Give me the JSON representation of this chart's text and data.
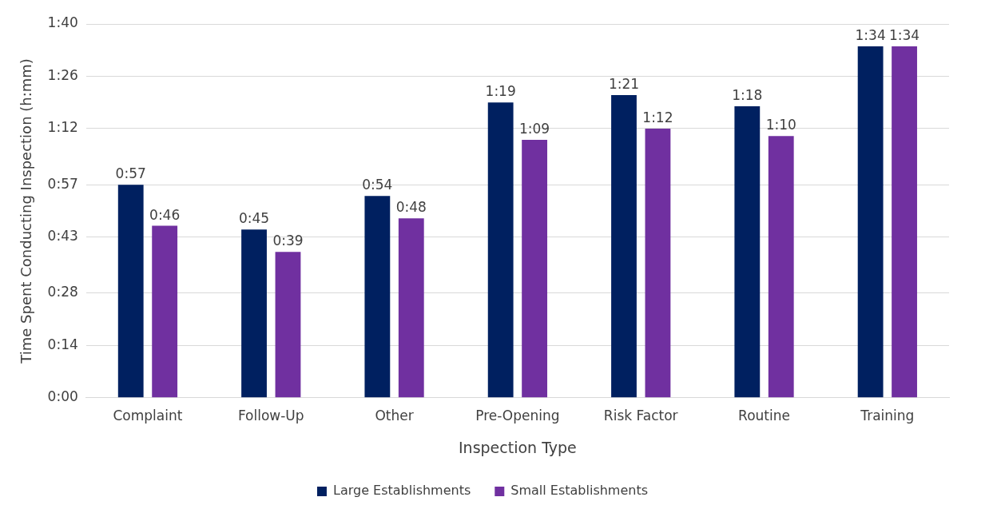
{
  "chart_data": {
    "type": "bar",
    "xlabel": "Inspection Type",
    "ylabel": "Time Spent Conducting Inspection (h:mm)",
    "categories": [
      "Complaint",
      "Follow-Up",
      "Other",
      "Pre-Opening",
      "Risk Factor",
      "Routine",
      "Training"
    ],
    "series": [
      {
        "name": "Large Establishments",
        "color": "#002060",
        "values": [
          57,
          45,
          54,
          79,
          81,
          78,
          94
        ],
        "value_labels": [
          "0:57",
          "0:45",
          "0:54",
          "1:19",
          "1:21",
          "1:18",
          "1:34"
        ]
      },
      {
        "name": "Small Establishments",
        "color": "#7030a0",
        "values": [
          46,
          39,
          48,
          69,
          72,
          70,
          94
        ],
        "value_labels": [
          "0:46",
          "0:39",
          "0:48",
          "1:09",
          "1:12",
          "1:10",
          "1:34"
        ]
      }
    ],
    "ylim": [
      0,
      100
    ],
    "yticks": [
      {
        "value": 0,
        "label": "0:00"
      },
      {
        "value": 14,
        "label": "0:14"
      },
      {
        "value": 28,
        "label": "0:28"
      },
      {
        "value": 43,
        "label": "0:43"
      },
      {
        "value": 57,
        "label": "0:57"
      },
      {
        "value": 72,
        "label": "1:12"
      },
      {
        "value": 86,
        "label": "1:26"
      },
      {
        "value": 100,
        "label": "1:40"
      }
    ],
    "grid": "y",
    "legend": "bottom"
  }
}
